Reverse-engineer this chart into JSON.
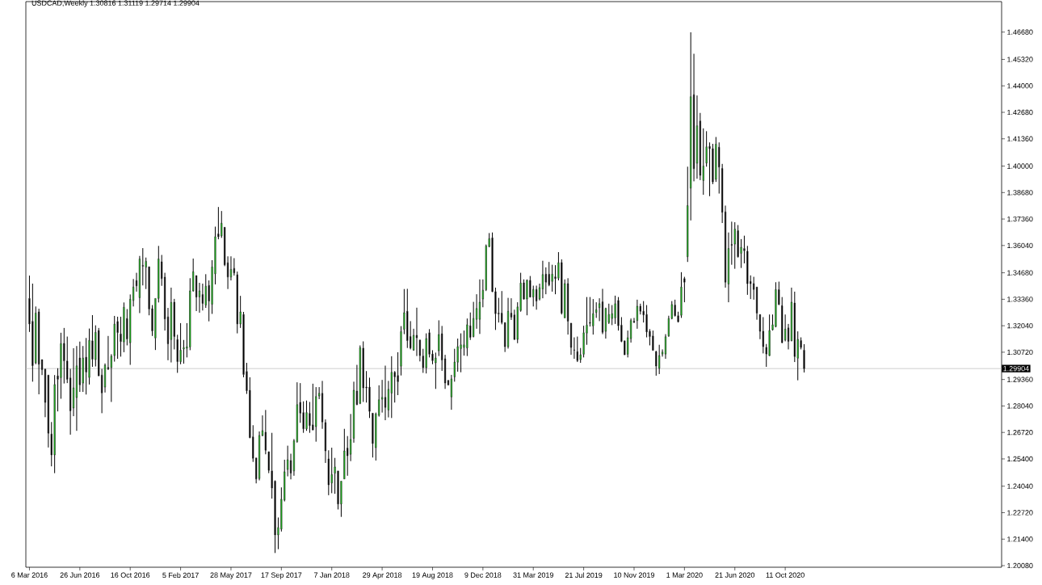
{
  "chart_data": {
    "type": "candlestick",
    "title": "USDCAD,Weekly  1.30816 1.31119 1.29714 1.29904",
    "x": [
      "2016-03-06",
      "2016-03-13",
      "2016-03-20",
      "2016-03-27",
      "2016-04-03",
      "2016-04-10",
      "2016-04-17",
      "2016-04-24",
      "2016-05-01",
      "2016-05-08",
      "2016-05-15",
      "2016-05-22",
      "2016-05-29",
      "2016-06-05",
      "2016-06-12",
      "2016-06-19",
      "2016-06-26",
      "2016-07-03",
      "2016-07-10",
      "2016-07-17",
      "2016-07-24",
      "2016-07-31",
      "2016-08-07",
      "2016-08-14",
      "2016-08-21",
      "2016-08-28",
      "2016-09-04",
      "2016-09-11",
      "2016-09-18",
      "2016-09-25",
      "2016-10-02",
      "2016-10-09",
      "2016-10-16",
      "2016-10-23",
      "2016-10-30",
      "2016-11-06",
      "2016-11-13",
      "2016-11-20",
      "2016-11-27",
      "2016-12-04",
      "2016-12-11",
      "2016-12-18",
      "2016-12-25",
      "2017-01-01",
      "2017-01-08",
      "2017-01-15",
      "2017-01-22",
      "2017-01-29",
      "2017-02-05",
      "2017-02-12",
      "2017-02-19",
      "2017-02-26",
      "2017-03-05",
      "2017-03-12",
      "2017-03-19",
      "2017-03-26",
      "2017-04-02",
      "2017-04-09",
      "2017-04-16",
      "2017-04-23",
      "2017-04-30",
      "2017-05-07",
      "2017-05-14",
      "2017-05-21",
      "2017-05-28",
      "2017-06-04",
      "2017-06-11",
      "2017-06-18",
      "2017-06-25",
      "2017-07-02",
      "2017-07-09",
      "2017-07-16",
      "2017-07-23",
      "2017-07-30",
      "2017-08-06",
      "2017-08-13",
      "2017-08-20",
      "2017-08-27",
      "2017-09-03",
      "2017-09-10",
      "2017-09-17",
      "2017-09-24",
      "2017-10-01",
      "2017-10-08",
      "2017-10-15",
      "2017-10-22",
      "2017-10-29",
      "2017-11-05",
      "2017-11-12",
      "2017-11-19",
      "2017-11-26",
      "2017-12-03",
      "2017-12-10",
      "2017-12-17",
      "2017-12-24",
      "2017-12-31",
      "2018-01-07",
      "2018-01-14",
      "2018-01-21",
      "2018-01-28",
      "2018-02-04",
      "2018-02-11",
      "2018-02-18",
      "2018-02-25",
      "2018-03-04",
      "2018-03-11",
      "2018-03-18",
      "2018-03-25",
      "2018-04-01",
      "2018-04-08",
      "2018-04-15",
      "2018-04-22",
      "2018-04-29",
      "2018-05-06",
      "2018-05-13",
      "2018-05-20",
      "2018-05-27",
      "2018-06-03",
      "2018-06-10",
      "2018-06-17",
      "2018-06-24",
      "2018-07-01",
      "2018-07-08",
      "2018-07-15",
      "2018-07-22",
      "2018-07-29",
      "2018-08-05",
      "2018-08-12",
      "2018-08-19",
      "2018-08-26",
      "2018-09-02",
      "2018-09-09",
      "2018-09-16",
      "2018-09-23",
      "2018-09-30",
      "2018-10-07",
      "2018-10-14",
      "2018-10-21",
      "2018-10-28",
      "2018-11-04",
      "2018-11-11",
      "2018-11-18",
      "2018-11-25",
      "2018-12-02",
      "2018-12-09",
      "2018-12-16",
      "2018-12-23",
      "2018-12-30",
      "2019-01-06",
      "2019-01-13",
      "2019-01-20",
      "2019-01-27",
      "2019-02-03",
      "2019-02-10",
      "2019-02-17",
      "2019-02-24",
      "2019-03-03",
      "2019-03-10",
      "2019-03-17",
      "2019-03-24",
      "2019-03-31",
      "2019-04-07",
      "2019-04-14",
      "2019-04-21",
      "2019-04-28",
      "2019-05-05",
      "2019-05-12",
      "2019-05-19",
      "2019-05-26",
      "2019-06-02",
      "2019-06-09",
      "2019-06-16",
      "2019-06-23",
      "2019-06-30",
      "2019-07-07",
      "2019-07-14",
      "2019-07-21",
      "2019-07-28",
      "2019-08-04",
      "2019-08-11",
      "2019-08-18",
      "2019-08-25",
      "2019-09-01",
      "2019-09-08",
      "2019-09-15",
      "2019-09-22",
      "2019-09-29",
      "2019-10-06",
      "2019-10-13",
      "2019-10-20",
      "2019-10-27",
      "2019-11-03",
      "2019-11-10",
      "2019-11-17",
      "2019-11-24",
      "2019-12-01",
      "2019-12-08",
      "2019-12-15",
      "2019-12-22",
      "2019-12-29",
      "2020-01-05",
      "2020-01-12",
      "2020-01-19",
      "2020-01-26",
      "2020-02-02",
      "2020-02-09",
      "2020-02-16",
      "2020-02-23",
      "2020-03-01",
      "2020-03-08",
      "2020-03-15",
      "2020-03-22",
      "2020-03-29",
      "2020-04-05",
      "2020-04-12",
      "2020-04-19",
      "2020-04-26",
      "2020-05-03",
      "2020-05-10",
      "2020-05-17",
      "2020-05-24",
      "2020-05-31",
      "2020-06-07",
      "2020-06-14",
      "2020-06-21",
      "2020-06-28",
      "2020-07-05",
      "2020-07-12",
      "2020-07-19",
      "2020-07-26",
      "2020-08-02",
      "2020-08-09",
      "2020-08-16",
      "2020-08-23",
      "2020-08-30",
      "2020-09-06",
      "2020-09-13",
      "2020-09-20",
      "2020-09-27",
      "2020-10-04",
      "2020-10-11",
      "2020-10-18",
      "2020-10-25",
      "2020-11-01",
      "2020-11-08",
      "2020-11-15",
      "2020-11-22"
    ],
    "ohlc": [
      [
        1.334,
        1.3454,
        1.3173,
        1.3213
      ],
      [
        1.3226,
        1.3414,
        1.2925,
        1.3005
      ],
      [
        1.3019,
        1.33,
        1.3012,
        1.3267
      ],
      [
        1.3273,
        1.3289,
        1.2862,
        1.3012
      ],
      [
        1.3035,
        1.3035,
        1.2958,
        1.2985
      ],
      [
        1.2988,
        1.2988,
        1.2748,
        1.2822
      ],
      [
        1.2958,
        1.2958,
        1.2597,
        1.2668
      ],
      [
        1.2664,
        1.2724,
        1.2503,
        1.256
      ],
      [
        1.256,
        1.2958,
        1.2469,
        1.2911
      ],
      [
        1.2954,
        1.2992,
        1.2777,
        1.2937
      ],
      [
        1.2945,
        1.3169,
        1.284,
        1.3115
      ],
      [
        1.3116,
        1.3193,
        1.2916,
        1.3029
      ],
      [
        1.3028,
        1.315,
        1.2918,
        1.2937
      ],
      [
        1.2944,
        1.2989,
        1.2661,
        1.278
      ],
      [
        1.2794,
        1.3092,
        1.2753,
        1.2894
      ],
      [
        1.2846,
        1.3103,
        1.268,
        1.3004
      ],
      [
        1.3043,
        1.3125,
        1.2874,
        1.2909
      ],
      [
        1.2918,
        1.3103,
        1.2874,
        1.3043
      ],
      [
        1.3047,
        1.3143,
        1.2861,
        1.2973
      ],
      [
        1.2946,
        1.319,
        1.2911,
        1.3131
      ],
      [
        1.3129,
        1.3257,
        1.2999,
        1.3037
      ],
      [
        1.3035,
        1.3206,
        1.3001,
        1.3171
      ],
      [
        1.318,
        1.3193,
        1.2954,
        1.2954
      ],
      [
        1.2958,
        1.2989,
        1.2768,
        1.2869
      ],
      [
        1.2898,
        1.3016,
        1.2871,
        1.3007
      ],
      [
        1.2996,
        1.3153,
        1.2983,
        1.2989
      ],
      [
        1.2996,
        1.3062,
        1.2824,
        1.3052
      ],
      [
        1.3055,
        1.3253,
        1.3025,
        1.3212
      ],
      [
        1.3225,
        1.3249,
        1.3039,
        1.317
      ],
      [
        1.3163,
        1.3249,
        1.305,
        1.3125
      ],
      [
        1.3123,
        1.332,
        1.3072,
        1.3296
      ],
      [
        1.324,
        1.3287,
        1.3106,
        1.3138
      ],
      [
        1.3119,
        1.336,
        1.3009,
        1.3336
      ],
      [
        1.333,
        1.3437,
        1.33,
        1.3397
      ],
      [
        1.3429,
        1.3468,
        1.3374,
        1.3403
      ],
      [
        1.3344,
        1.3552,
        1.3267,
        1.3537
      ],
      [
        1.3505,
        1.3591,
        1.3405,
        1.3501
      ],
      [
        1.3496,
        1.3544,
        1.3387,
        1.3525
      ],
      [
        1.3498,
        1.3498,
        1.3256,
        1.3287
      ],
      [
        1.3289,
        1.3307,
        1.3153,
        1.3178
      ],
      [
        1.3143,
        1.334,
        1.3083,
        1.334
      ],
      [
        1.334,
        1.3602,
        1.332,
        1.3537
      ],
      [
        1.3523,
        1.3557,
        1.3403,
        1.3439
      ],
      [
        1.3446,
        1.3468,
        1.318,
        1.3238
      ],
      [
        1.3248,
        1.3293,
        1.3032,
        1.3114
      ],
      [
        1.3135,
        1.3394,
        1.3021,
        1.332
      ],
      [
        1.3321,
        1.3338,
        1.3086,
        1.315
      ],
      [
        1.3135,
        1.3159,
        1.2969,
        1.3025
      ],
      [
        1.3025,
        1.3217,
        1.3012,
        1.3082
      ],
      [
        1.3088,
        1.3133,
        1.3015,
        1.3095
      ],
      [
        1.3092,
        1.3217,
        1.3046,
        1.3099
      ],
      [
        1.3098,
        1.3441,
        1.3082,
        1.3378
      ],
      [
        1.3378,
        1.3539,
        1.3374,
        1.3473
      ],
      [
        1.3454,
        1.3454,
        1.3277,
        1.3347
      ],
      [
        1.3348,
        1.3418,
        1.3269,
        1.3378
      ],
      [
        1.336,
        1.3414,
        1.328,
        1.3315
      ],
      [
        1.3307,
        1.3461,
        1.3293,
        1.3401
      ],
      [
        1.3405,
        1.343,
        1.3226,
        1.3327
      ],
      [
        1.3311,
        1.3531,
        1.3263,
        1.3497
      ],
      [
        1.3463,
        1.3698,
        1.341,
        1.3648
      ],
      [
        1.3662,
        1.3796,
        1.3635,
        1.3648
      ],
      [
        1.3652,
        1.3776,
        1.3642,
        1.3715
      ],
      [
        1.3695,
        1.3695,
        1.3501,
        1.3508
      ],
      [
        1.3518,
        1.355,
        1.3387,
        1.3447
      ],
      [
        1.3447,
        1.355,
        1.343,
        1.3485
      ],
      [
        1.349,
        1.3541,
        1.3454,
        1.3467
      ],
      [
        1.3458,
        1.3474,
        1.3166,
        1.3213
      ],
      [
        1.3213,
        1.3353,
        1.3193,
        1.3273
      ],
      [
        1.326,
        1.3273,
        1.2947,
        1.2961
      ],
      [
        1.2976,
        1.3019,
        1.2864,
        1.288
      ],
      [
        1.2882,
        1.2947,
        1.2643,
        1.2646
      ],
      [
        1.265,
        1.2708,
        1.2525,
        1.2543
      ],
      [
        1.2545,
        1.2545,
        1.2418,
        1.244
      ],
      [
        1.2442,
        1.2677,
        1.2433,
        1.2657
      ],
      [
        1.2657,
        1.2757,
        1.2653,
        1.2681
      ],
      [
        1.2673,
        1.2784,
        1.2563,
        1.2583
      ],
      [
        1.2576,
        1.2576,
        1.2469,
        1.2483
      ],
      [
        1.248,
        1.267,
        1.2342,
        1.2395
      ],
      [
        1.2429,
        1.2433,
        1.2071,
        1.2161
      ],
      [
        1.2161,
        1.2248,
        1.209,
        1.2198
      ],
      [
        1.219,
        1.2398,
        1.2178,
        1.2339
      ],
      [
        1.2335,
        1.2536,
        1.2328,
        1.2476
      ],
      [
        1.2487,
        1.2606,
        1.2453,
        1.2536
      ],
      [
        1.2532,
        1.2566,
        1.2438,
        1.2469
      ],
      [
        1.248,
        1.2639,
        1.2456,
        1.263
      ],
      [
        1.2626,
        1.2922,
        1.2621,
        1.2811
      ],
      [
        1.2822,
        1.2918,
        1.272,
        1.2768
      ],
      [
        1.2771,
        1.2827,
        1.267,
        1.269
      ],
      [
        1.269,
        1.2831,
        1.268,
        1.2771
      ],
      [
        1.2767,
        1.2824,
        1.267,
        1.2706
      ],
      [
        1.271,
        1.2915,
        1.2684,
        1.2684
      ],
      [
        1.2701,
        1.2898,
        1.2626,
        1.2851
      ],
      [
        1.2854,
        1.2898,
        1.2838,
        1.2867
      ],
      [
        1.2867,
        1.2929,
        1.269,
        1.2724
      ],
      [
        1.2721,
        1.2737,
        1.252,
        1.258
      ],
      [
        1.254,
        1.2583,
        1.2359,
        1.2411
      ],
      [
        1.242,
        1.2596,
        1.2369,
        1.2462
      ],
      [
        1.2469,
        1.2545,
        1.2366,
        1.25
      ],
      [
        1.248,
        1.248,
        1.2288,
        1.2315
      ],
      [
        1.2315,
        1.2429,
        1.2251,
        1.2429
      ],
      [
        1.244,
        1.269,
        1.244,
        1.258
      ],
      [
        1.2594,
        1.2654,
        1.2456,
        1.2556
      ],
      [
        1.2563,
        1.2764,
        1.2529,
        1.2637
      ],
      [
        1.2643,
        1.2925,
        1.2621,
        1.2882
      ],
      [
        1.2878,
        1.3009,
        1.2808,
        1.2811
      ],
      [
        1.2817,
        1.3106,
        1.2813,
        1.3095
      ],
      [
        1.3092,
        1.3126,
        1.2824,
        1.2894
      ],
      [
        1.2898,
        1.2978,
        1.2821,
        1.2894
      ],
      [
        1.2898,
        1.2945,
        1.2744,
        1.2777
      ],
      [
        1.2768,
        1.2768,
        1.2547,
        1.2617
      ],
      [
        1.2596,
        1.2771,
        1.2532,
        1.2764
      ],
      [
        1.2757,
        1.2907,
        1.2751,
        1.2835
      ],
      [
        1.2838,
        1.2934,
        1.2771,
        1.2847
      ],
      [
        1.2847,
        1.3005,
        1.2733,
        1.2797
      ],
      [
        1.2784,
        1.2929,
        1.2747,
        1.2887
      ],
      [
        1.2868,
        1.3052,
        1.2744,
        1.2972
      ],
      [
        1.2972,
        1.2978,
        1.2821,
        1.2949
      ],
      [
        1.2956,
        1.3072,
        1.2858,
        1.2925
      ],
      [
        1.3002,
        1.3202,
        1.2956,
        1.3175
      ],
      [
        1.3186,
        1.3387,
        1.3162,
        1.3269
      ],
      [
        1.3276,
        1.3388,
        1.3093,
        1.313
      ],
      [
        1.315,
        1.3227,
        1.3086,
        1.3093
      ],
      [
        1.3083,
        1.3189,
        1.3079,
        1.3156
      ],
      [
        1.3156,
        1.3294,
        1.3053,
        1.3144
      ],
      [
        1.3133,
        1.3133,
        1.3026,
        1.3055
      ],
      [
        1.3053,
        1.3089,
        1.2969,
        1.2995
      ],
      [
        1.2995,
        1.3166,
        1.2966,
        1.314
      ],
      [
        1.3169,
        1.3187,
        1.3046,
        1.3062
      ],
      [
        1.3063,
        1.3082,
        1.3012,
        1.303
      ],
      [
        1.3019,
        1.307,
        1.2889,
        1.3043
      ],
      [
        1.3079,
        1.3231,
        1.3053,
        1.316
      ],
      [
        1.3164,
        1.3203,
        1.2979,
        1.3033
      ],
      [
        1.3039,
        1.3059,
        1.2889,
        1.2919
      ],
      [
        1.2932,
        1.2932,
        1.2908,
        1.2908
      ],
      [
        1.2849,
        1.2959,
        1.2785,
        1.2939
      ],
      [
        1.2949,
        1.3089,
        1.2925,
        1.3023
      ],
      [
        1.3022,
        1.314,
        1.2975,
        1.31
      ],
      [
        1.309,
        1.3166,
        1.2972,
        1.3109
      ],
      [
        1.3096,
        1.318,
        1.3055,
        1.3109
      ],
      [
        1.3093,
        1.324,
        1.3053,
        1.3209
      ],
      [
        1.3204,
        1.327,
        1.3133,
        1.3146
      ],
      [
        1.315,
        1.3323,
        1.3146,
        1.324
      ],
      [
        1.3236,
        1.3361,
        1.3189,
        1.329
      ],
      [
        1.3236,
        1.3435,
        1.3163,
        1.3321
      ],
      [
        1.3337,
        1.3435,
        1.3296,
        1.3381
      ],
      [
        1.3384,
        1.3609,
        1.3377,
        1.3602
      ],
      [
        1.3599,
        1.3666,
        1.3595,
        1.3638
      ],
      [
        1.3642,
        1.3669,
        1.3372,
        1.3374
      ],
      [
        1.3374,
        1.3394,
        1.3183,
        1.3264
      ],
      [
        1.3267,
        1.3343,
        1.322,
        1.3263
      ],
      [
        1.3267,
        1.3377,
        1.3211,
        1.322
      ],
      [
        1.322,
        1.322,
        1.3073,
        1.31
      ],
      [
        1.31,
        1.3343,
        1.309,
        1.3276
      ],
      [
        1.3267,
        1.3341,
        1.3233,
        1.3247
      ],
      [
        1.3258,
        1.3284,
        1.3133,
        1.3136
      ],
      [
        1.3136,
        1.3321,
        1.3117,
        1.3298
      ],
      [
        1.328,
        1.3468,
        1.3274,
        1.3417
      ],
      [
        1.3418,
        1.3435,
        1.3334,
        1.3337
      ],
      [
        1.3337,
        1.3435,
        1.3256,
        1.343
      ],
      [
        1.343,
        1.3452,
        1.3345,
        1.3347
      ],
      [
        1.3347,
        1.3404,
        1.33,
        1.3385
      ],
      [
        1.3385,
        1.3404,
        1.3284,
        1.3327
      ],
      [
        1.3337,
        1.3414,
        1.333,
        1.3394
      ],
      [
        1.3388,
        1.3528,
        1.3341,
        1.3459
      ],
      [
        1.3461,
        1.3495,
        1.3361,
        1.3421
      ],
      [
        1.3461,
        1.3522,
        1.3401,
        1.3408
      ],
      [
        1.3425,
        1.3508,
        1.3374,
        1.3461
      ],
      [
        1.3448,
        1.3506,
        1.3361,
        1.3439
      ],
      [
        1.3441,
        1.3571,
        1.343,
        1.3518
      ],
      [
        1.3519,
        1.3535,
        1.326,
        1.3267
      ],
      [
        1.3243,
        1.3435,
        1.3243,
        1.3414
      ],
      [
        1.3414,
        1.3441,
        1.316,
        1.3227
      ],
      [
        1.3217,
        1.3217,
        1.3059,
        1.3096
      ],
      [
        1.3083,
        1.3146,
        1.3039,
        1.3082
      ],
      [
        1.3075,
        1.315,
        1.3023,
        1.303
      ],
      [
        1.3035,
        1.3093,
        1.3019,
        1.3059
      ],
      [
        1.3062,
        1.3204,
        1.3046,
        1.3169
      ],
      [
        1.3167,
        1.3347,
        1.3109,
        1.3207
      ],
      [
        1.322,
        1.3347,
        1.32,
        1.3216
      ],
      [
        1.3203,
        1.3337,
        1.316,
        1.3264
      ],
      [
        1.327,
        1.3321,
        1.3243,
        1.3284
      ],
      [
        1.3294,
        1.3341,
        1.3227,
        1.3314
      ],
      [
        1.3323,
        1.3388,
        1.3162,
        1.3171
      ],
      [
        1.3176,
        1.3294,
        1.314,
        1.329
      ],
      [
        1.322,
        1.3314,
        1.3213,
        1.326
      ],
      [
        1.324,
        1.3307,
        1.3207,
        1.3264
      ],
      [
        1.3243,
        1.3354,
        1.3213,
        1.3314
      ],
      [
        1.333,
        1.3347,
        1.318,
        1.3204
      ],
      [
        1.3207,
        1.3247,
        1.3122,
        1.3126
      ],
      [
        1.3129,
        1.3129,
        1.3059,
        1.3059
      ],
      [
        1.3062,
        1.318,
        1.3046,
        1.3144
      ],
      [
        1.314,
        1.324,
        1.312,
        1.323
      ],
      [
        1.3227,
        1.3243,
        1.322,
        1.322
      ],
      [
        1.323,
        1.3334,
        1.3189,
        1.3301
      ],
      [
        1.3301,
        1.3314,
        1.326,
        1.3276
      ],
      [
        1.3276,
        1.3327,
        1.322,
        1.3258
      ],
      [
        1.326,
        1.3307,
        1.3146,
        1.3173
      ],
      [
        1.3176,
        1.3187,
        1.3106,
        1.315
      ],
      [
        1.3153,
        1.318,
        1.3079,
        1.3082
      ],
      [
        1.3075,
        1.3079,
        1.2955,
        1.3003
      ],
      [
        1.2992,
        1.3109,
        1.2963,
        1.3055
      ],
      [
        1.3063,
        1.3086,
        1.305,
        1.3073
      ],
      [
        1.3063,
        1.3162,
        1.3039,
        1.3149
      ],
      [
        1.3153,
        1.3254,
        1.3149,
        1.324
      ],
      [
        1.324,
        1.3327,
        1.3236,
        1.331
      ],
      [
        1.3307,
        1.3334,
        1.325,
        1.3254
      ],
      [
        1.3254,
        1.3274,
        1.322,
        1.3224
      ],
      [
        1.3256,
        1.3471,
        1.3243,
        1.3397
      ],
      [
        1.3439,
        1.3448,
        1.3321,
        1.3421
      ],
      [
        1.3548,
        1.3997,
        1.3522,
        1.3803
      ],
      [
        1.389,
        1.4667,
        1.3729,
        1.4346
      ],
      [
        1.4356,
        1.456,
        1.3924,
        1.3987
      ],
      [
        1.4014,
        1.4352,
        1.3937,
        1.4201
      ],
      [
        1.4225,
        1.4265,
        1.393,
        1.3954
      ],
      [
        1.3928,
        1.4188,
        1.3857,
        1.4
      ],
      [
        1.4015,
        1.4174,
        1.3997,
        1.4096
      ],
      [
        1.4098,
        1.4118,
        1.385,
        1.4087
      ],
      [
        1.4087,
        1.4111,
        1.391,
        1.3921
      ],
      [
        1.3934,
        1.4145,
        1.3921,
        1.4109
      ],
      [
        1.4094,
        1.4118,
        1.3863,
        1.3995
      ],
      [
        1.3988,
        1.4011,
        1.3716,
        1.377
      ],
      [
        1.3772,
        1.3803,
        1.3394,
        1.3421
      ],
      [
        1.3412,
        1.3669,
        1.3321,
        1.3589
      ],
      [
        1.3609,
        1.3723,
        1.3508,
        1.3605
      ],
      [
        1.3611,
        1.372,
        1.3488,
        1.3686
      ],
      [
        1.3678,
        1.3706,
        1.3544,
        1.3548
      ],
      [
        1.3565,
        1.3636,
        1.3492,
        1.3595
      ],
      [
        1.3589,
        1.3653,
        1.3515,
        1.3578
      ],
      [
        1.3575,
        1.3602,
        1.3358,
        1.3414
      ],
      [
        1.3425,
        1.3455,
        1.3337,
        1.3414
      ],
      [
        1.3414,
        1.3448,
        1.3334,
        1.3385
      ],
      [
        1.3397,
        1.3397,
        1.3234,
        1.3267
      ],
      [
        1.326,
        1.326,
        1.3137,
        1.3176
      ],
      [
        1.3176,
        1.3247,
        1.3066,
        1.31
      ],
      [
        1.3096,
        1.3113,
        1.2999,
        1.3063
      ],
      [
        1.3055,
        1.326,
        1.3053,
        1.318
      ],
      [
        1.3184,
        1.326,
        1.318,
        1.3209
      ],
      [
        1.32,
        1.3421,
        1.3196,
        1.3384
      ],
      [
        1.3384,
        1.3424,
        1.3307,
        1.331
      ],
      [
        1.3304,
        1.3347,
        1.3117,
        1.312
      ],
      [
        1.3133,
        1.326,
        1.3126,
        1.3187
      ],
      [
        1.3193,
        1.3213,
        1.3086,
        1.3126
      ],
      [
        1.313,
        1.3394,
        1.3126,
        1.3321
      ],
      [
        1.3317,
        1.3374,
        1.3023,
        1.305
      ],
      [
        1.3042,
        1.3176,
        1.2932,
        1.3136
      ],
      [
        1.313,
        1.3146,
        1.3086,
        1.3096
      ],
      [
        1.3082,
        1.3112,
        1.2971,
        1.299
      ]
    ],
    "colors": [
      "#000000",
      "#000000",
      "#22c822",
      "#000000",
      "#000000",
      "#000000",
      "#000000",
      "#000000",
      "#22c822",
      "#000000",
      "#22c822",
      "#000000",
      "#000000",
      "#000000",
      "#22c822",
      "#22c822",
      "#000000",
      "#22c822",
      "#000000",
      "#22c822",
      "#000000",
      "#22c822",
      "#000000",
      "#000000",
      "#22c822",
      "#000000",
      "#22c822",
      "#22c822",
      "#000000",
      "#000000",
      "#22c822",
      "#000000",
      "#22c822",
      "#22c822",
      "#000000",
      "#22c822",
      "#000000",
      "#22c822",
      "#000000",
      "#000000",
      "#22c822",
      "#22c822",
      "#000000",
      "#000000",
      "#000000",
      "#22c822",
      "#000000",
      "#000000",
      "#22c822",
      "#22c822",
      "#22c822",
      "#22c822",
      "#22c822",
      "#000000",
      "#22c822",
      "#000000",
      "#22c822",
      "#000000",
      "#22c822",
      "#22c822",
      "#000000",
      "#22c822",
      "#000000",
      "#000000",
      "#22c822",
      "#000000",
      "#000000",
      "#22c822",
      "#000000",
      "#000000",
      "#000000",
      "#000000",
      "#000000",
      "#22c822",
      "#22c822",
      "#000000",
      "#000000",
      "#000000",
      "#000000",
      "#22c822",
      "#22c822",
      "#22c822",
      "#22c822",
      "#000000",
      "#22c822",
      "#22c822",
      "#000000",
      "#000000",
      "#22c822",
      "#000000",
      "#000000",
      "#22c822",
      "#22c822",
      "#000000",
      "#000000",
      "#000000",
      "#22c822",
      "#22c822",
      "#000000",
      "#22c822",
      "#22c822",
      "#000000",
      "#22c822",
      "#22c822",
      "#000000",
      "#22c822",
      "#000000",
      "#000000",
      "#000000",
      "#000000",
      "#22c822",
      "#22c822",
      "#22c822",
      "#000000",
      "#22c822",
      "#22c822",
      "#000000",
      "#000000",
      "#22c822",
      "#22c822",
      "#000000",
      "#000000",
      "#22c822",
      "#000000",
      "#000000",
      "#000000",
      "#22c822",
      "#000000",
      "#000000",
      "#22c822",
      "#22c822",
      "#000000",
      "#000000",
      "#000000",
      "#22c822",
      "#22c822",
      "#22c822",
      "#22c822",
      "#22c822",
      "#22c822",
      "#000000",
      "#22c822",
      "#22c822",
      "#22c822",
      "#22c822",
      "#22c822",
      "#22c822",
      "#000000",
      "#000000",
      "#000000",
      "#000000",
      "#000000",
      "#22c822",
      "#000000",
      "#000000",
      "#22c822",
      "#22c822",
      "#000000",
      "#22c822",
      "#000000",
      "#22c822",
      "#000000",
      "#22c822",
      "#22c822",
      "#000000",
      "#000000",
      "#22c822",
      "#000000",
      "#22c822",
      "#000000",
      "#22c822",
      "#000000",
      "#000000",
      "#000000",
      "#000000",
      "#22c822",
      "#22c822",
      "#22c822",
      "#000000",
      "#22c822",
      "#22c822",
      "#22c822",
      "#000000",
      "#22c822",
      "#22c822",
      "#22c822",
      "#22c822",
      "#000000",
      "#000000",
      "#000000",
      "#22c822",
      "#22c822",
      "#000000",
      "#22c822",
      "#000000",
      "#000000",
      "#000000",
      "#000000",
      "#000000",
      "#000000",
      "#22c822",
      "#22c822",
      "#22c822",
      "#22c822",
      "#22c822",
      "#000000",
      "#000000",
      "#22c822",
      "#000000",
      "#22c822",
      "#22c822",
      "#000000",
      "#22c822",
      "#000000",
      "#22c822",
      "#22c822",
      "#000000",
      "#000000",
      "#22c822",
      "#000000",
      "#000000",
      "#000000",
      "#22c822",
      "#000000",
      "#22c822",
      "#000000",
      "#22c822",
      "#000000",
      "#000000",
      "#000000",
      "#000000",
      "#000000",
      "#000000",
      "#000000",
      "#000000",
      "#22c822",
      "#22c822",
      "#22c822",
      "#000000",
      "#000000",
      "#22c822",
      "#000000",
      "#22c822",
      "#000000",
      "#22c822",
      "#000000",
      "#000000"
    ],
    "xlim": [
      "2016-02-27",
      "2022-02-04"
    ],
    "xticks": [
      {
        "value": "2016-03-06",
        "label": "6 Mar 2016"
      },
      {
        "value": "2016-06-26",
        "label": "26 Jun 2016"
      },
      {
        "value": "2016-10-16",
        "label": "16 Oct 2016"
      },
      {
        "value": "2017-02-05",
        "label": "5 Feb 2017"
      },
      {
        "value": "2017-05-28",
        "label": "28 May 2017"
      },
      {
        "value": "2017-09-17",
        "label": "17 Sep 2017"
      },
      {
        "value": "2018-01-07",
        "label": "7 Jan 2018"
      },
      {
        "value": "2018-04-29",
        "label": "29 Apr 2018"
      },
      {
        "value": "2018-08-19",
        "label": "19 Aug 2018"
      },
      {
        "value": "2018-12-09",
        "label": "9 Dec 2018"
      },
      {
        "value": "2019-03-31",
        "label": "31 Mar 2019"
      },
      {
        "value": "2019-07-21",
        "label": "21 Jul 2019"
      },
      {
        "value": "2019-11-10",
        "label": "10 Nov 2019"
      },
      {
        "value": "2020-03-01",
        "label": "1 Mar 2020"
      },
      {
        "value": "2020-06-21",
        "label": "21 Jun 2020"
      },
      {
        "value": "2020-10-11",
        "label": "11 Oct 2020"
      }
    ],
    "ylim": [
      1.2,
      1.482
    ],
    "yticks": [
      {
        "value": 1.4668,
        "label": "1.46680"
      },
      {
        "value": 1.4532,
        "label": "1.45320"
      },
      {
        "value": 1.44,
        "label": "1.44000"
      },
      {
        "value": 1.4268,
        "label": "1.42680"
      },
      {
        "value": 1.4136,
        "label": "1.41360"
      },
      {
        "value": 1.4,
        "label": "1.40000"
      },
      {
        "value": 1.3868,
        "label": "1.38680"
      },
      {
        "value": 1.3736,
        "label": "1.37360"
      },
      {
        "value": 1.3604,
        "label": "1.36040"
      },
      {
        "value": 1.3468,
        "label": "1.34680"
      },
      {
        "value": 1.3336,
        "label": "1.33360"
      },
      {
        "value": 1.3204,
        "label": "1.32040"
      },
      {
        "value": 1.3072,
        "label": "1.30720"
      },
      {
        "value": 1.2936,
        "label": "1.29360"
      },
      {
        "value": 1.2804,
        "label": "1.28040"
      },
      {
        "value": 1.2672,
        "label": "1.26720"
      },
      {
        "value": 1.254,
        "label": "1.25400"
      },
      {
        "value": 1.2404,
        "label": "1.24040"
      },
      {
        "value": 1.2272,
        "label": "1.22720"
      },
      {
        "value": 1.214,
        "label": "1.21400"
      },
      {
        "value": 1.2008,
        "label": "1.20080"
      }
    ],
    "ref_lines": [
      {
        "axis": "y",
        "value": 1.29904,
        "label": "1.29904",
        "color": "#c0c0c0"
      }
    ]
  }
}
